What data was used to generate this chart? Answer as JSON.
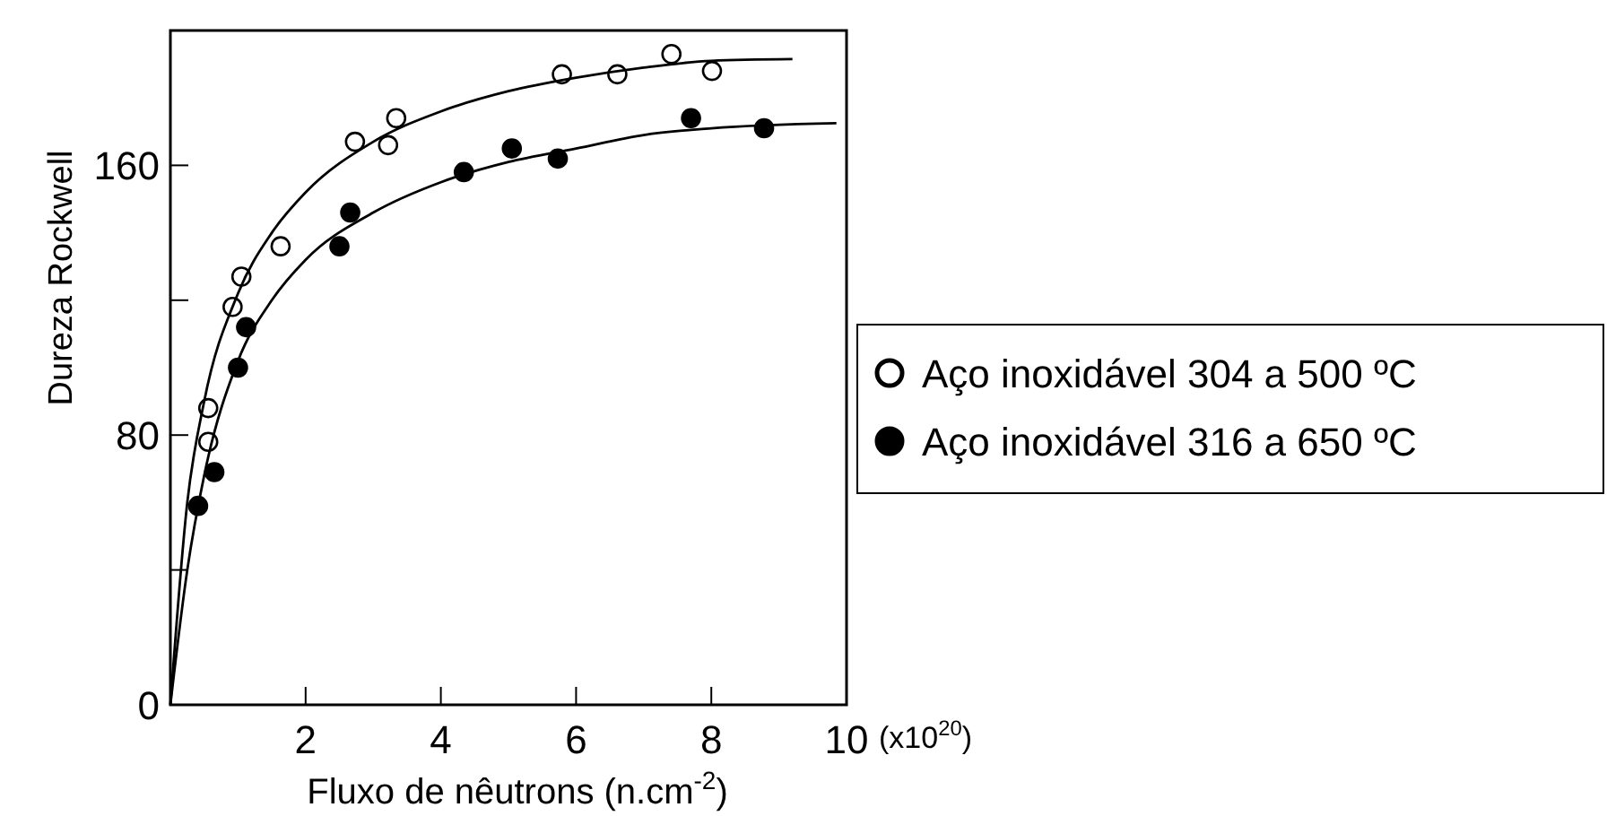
{
  "chart_data": {
    "type": "scatter",
    "xlabel": "Fluxo de nêutrons (n.cm$^{-2}$)",
    "ylabel": "Dureza Rockwell",
    "annotations": [
      "(x10$^{20}$)"
    ],
    "xlim": [
      0,
      10
    ],
    "ylim": [
      0,
      200
    ],
    "xticks": [
      2,
      4,
      6,
      8,
      10
    ],
    "yticks": [
      0,
      {
        "value": 40,
        "label": null
      },
      80,
      {
        "value": 120,
        "label": null
      },
      160
    ],
    "legend": "right",
    "marker": "circle",
    "grid": false,
    "series": [
      {
        "name": "Aço inoxidável 304 a 500 ºC",
        "color": "#000000",
        "x": [
          0.56,
          0.56,
          0.92,
          1.05,
          1.63,
          2.73,
          3.22,
          3.34,
          5.79,
          6.61,
          7.41,
          8.01
        ],
        "values": [
          88,
          78,
          118,
          127,
          136,
          167,
          166,
          174,
          187,
          187,
          193,
          188
        ]
      },
      {
        "name": "Aço inoxidável 316 a 650 ºC",
        "color": "#000000",
        "x": [
          0.41,
          0.65,
          1.0,
          1.12,
          2.5,
          2.66,
          4.34,
          5.05,
          5.73,
          7.7,
          8.78
        ],
        "values": [
          59,
          69,
          100,
          112,
          136,
          146,
          158,
          165,
          162,
          174,
          171
        ]
      },
      {
        "type": "line",
        "marker": "none",
        "color": "#000000",
        "x": [
          0,
          0.25,
          0.5,
          1,
          1.5,
          2,
          3,
          4,
          5,
          6,
          7,
          8,
          9.2
        ],
        "values": [
          0,
          60,
          90,
          122,
          140,
          152,
          167,
          176,
          182,
          186,
          189,
          191,
          191.5
        ]
      },
      {
        "type": "line",
        "marker": "none",
        "color": "#000000",
        "x": [
          0,
          0.25,
          0.5,
          1,
          1.5,
          2,
          3,
          4,
          5,
          6,
          7,
          8,
          9.85
        ],
        "values": [
          0,
          40,
          68,
          102,
          120,
          132,
          146,
          155,
          161,
          165,
          169,
          171,
          172.5
        ]
      }
    ]
  }
}
